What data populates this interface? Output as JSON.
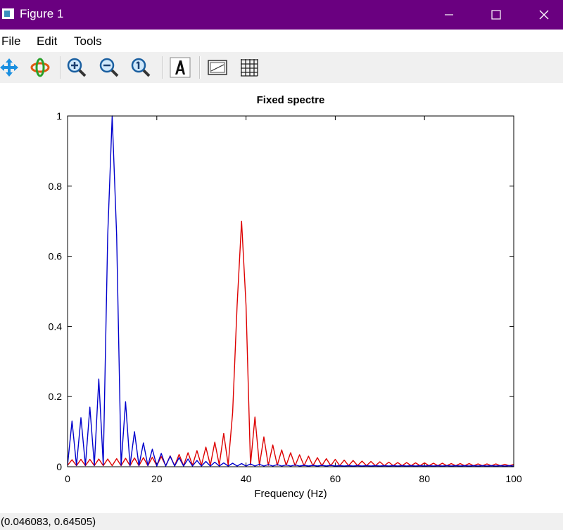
{
  "window": {
    "title": "Figure 1"
  },
  "menu": {
    "file": "File",
    "edit": "Edit",
    "tools": "Tools"
  },
  "toolbar": {
    "icons": [
      "pan-icon",
      "rotate-icon",
      "zoom-in-icon",
      "zoom-out-icon",
      "zoom-reset-icon",
      "text-annotation-icon",
      "legend-icon",
      "grid-icon"
    ]
  },
  "status": {
    "coordinates": "(0.046083, 0.64505)"
  },
  "colors": {
    "titlebar": "#6a0080",
    "blue_series": "#0000cc",
    "red_series": "#dd0000"
  },
  "chart_data": {
    "type": "line",
    "title": "Fixed spectre",
    "xlabel": "Frequency (Hz)",
    "ylabel": "",
    "xlim": [
      0,
      100
    ],
    "ylim": [
      0,
      1
    ],
    "xticks": [
      0,
      20,
      40,
      60,
      80,
      100
    ],
    "yticks": [
      0,
      0.2,
      0.4,
      0.6,
      0.8,
      1
    ],
    "xtick_labels": [
      "0",
      "20",
      "40",
      "60",
      "80",
      "100"
    ],
    "ytick_labels": [
      "0",
      "0.2",
      "0.4",
      "0.6",
      "0.8",
      "1"
    ],
    "grid": false,
    "legend": "none",
    "series": [
      {
        "color": "#0000cc",
        "x": [
          0,
          1,
          2,
          3,
          4,
          5,
          6,
          7,
          8,
          9,
          10,
          11,
          12,
          13,
          14,
          15,
          16,
          17,
          18,
          19,
          20,
          21,
          22,
          23,
          24,
          25,
          26,
          27,
          28,
          29,
          30,
          31,
          32,
          33,
          34,
          35,
          36,
          37,
          38,
          39,
          40,
          41,
          42,
          43,
          44,
          45,
          46,
          47,
          48,
          49,
          50,
          51,
          52,
          53,
          54,
          55,
          56,
          57,
          58,
          59,
          60,
          61,
          62,
          63,
          64,
          65,
          66,
          67,
          68,
          69,
          70,
          71,
          72,
          73,
          74,
          75,
          76,
          77,
          78,
          79,
          80,
          81,
          82,
          83,
          84,
          85,
          86,
          87,
          88,
          89,
          90,
          91,
          92,
          93,
          94,
          95,
          96,
          97,
          98,
          99,
          100
        ],
        "y": [
          0.005,
          0.13,
          0.004,
          0.14,
          0.004,
          0.17,
          0.004,
          0.25,
          0.005,
          0.66,
          1.0,
          0.66,
          0.004,
          0.185,
          0.003,
          0.1,
          0.003,
          0.068,
          0.003,
          0.05,
          0.002,
          0.038,
          0.002,
          0.03,
          0.002,
          0.026,
          0.002,
          0.022,
          0.002,
          0.018,
          0.002,
          0.015,
          0.002,
          0.013,
          0.002,
          0.011,
          0.002,
          0.01,
          0.002,
          0.009,
          0.002,
          0.008,
          0.002,
          0.007,
          0.002,
          0.006,
          0.002,
          0.006,
          0.002,
          0.005,
          0.002,
          0.005,
          0.002,
          0.004,
          0.002,
          0.004,
          0.002,
          0.004,
          0.002,
          0.004,
          0.002,
          0.003,
          0.002,
          0.003,
          0.002,
          0.003,
          0.002,
          0.003,
          0.002,
          0.003,
          0.002,
          0.003,
          0.002,
          0.003,
          0.002,
          0.003,
          0.002,
          0.003,
          0.002,
          0.003,
          0.002,
          0.003,
          0.002,
          0.003,
          0.002,
          0.003,
          0.002,
          0.003,
          0.002,
          0.003,
          0.002,
          0.003,
          0.002,
          0.003,
          0.002,
          0.003,
          0.002,
          0.003,
          0.002,
          0.003,
          0.002
        ]
      },
      {
        "color": "#dd0000",
        "x": [
          0,
          1,
          2,
          3,
          4,
          5,
          6,
          7,
          8,
          9,
          10,
          11,
          12,
          13,
          14,
          15,
          16,
          17,
          18,
          19,
          20,
          21,
          22,
          23,
          24,
          25,
          26,
          27,
          28,
          29,
          30,
          31,
          32,
          33,
          34,
          35,
          36,
          37,
          38,
          39,
          40,
          41,
          42,
          43,
          44,
          45,
          46,
          47,
          48,
          49,
          50,
          51,
          52,
          53,
          54,
          55,
          56,
          57,
          58,
          59,
          60,
          61,
          62,
          63,
          64,
          65,
          66,
          67,
          68,
          69,
          70,
          71,
          72,
          73,
          74,
          75,
          76,
          77,
          78,
          79,
          80,
          81,
          82,
          83,
          84,
          85,
          86,
          87,
          88,
          89,
          90,
          91,
          92,
          93,
          94,
          95,
          96,
          97,
          98,
          99,
          100
        ],
        "y": [
          0.004,
          0.02,
          0.003,
          0.021,
          0.003,
          0.021,
          0.003,
          0.022,
          0.003,
          0.022,
          0.003,
          0.023,
          0.003,
          0.024,
          0.003,
          0.025,
          0.003,
          0.026,
          0.003,
          0.027,
          0.003,
          0.029,
          0.003,
          0.031,
          0.003,
          0.035,
          0.003,
          0.04,
          0.004,
          0.046,
          0.004,
          0.056,
          0.004,
          0.07,
          0.005,
          0.095,
          0.005,
          0.155,
          0.46,
          0.7,
          0.46,
          0.005,
          0.142,
          0.004,
          0.085,
          0.004,
          0.062,
          0.004,
          0.048,
          0.004,
          0.04,
          0.003,
          0.034,
          0.003,
          0.03,
          0.003,
          0.026,
          0.003,
          0.023,
          0.003,
          0.021,
          0.003,
          0.019,
          0.003,
          0.018,
          0.003,
          0.016,
          0.003,
          0.015,
          0.003,
          0.014,
          0.003,
          0.013,
          0.003,
          0.012,
          0.003,
          0.012,
          0.003,
          0.011,
          0.003,
          0.011,
          0.003,
          0.01,
          0.003,
          0.01,
          0.003,
          0.009,
          0.003,
          0.009,
          0.003,
          0.009,
          0.003,
          0.008,
          0.003,
          0.008,
          0.003,
          0.008,
          0.003,
          0.007,
          0.003,
          0.007
        ]
      }
    ]
  }
}
